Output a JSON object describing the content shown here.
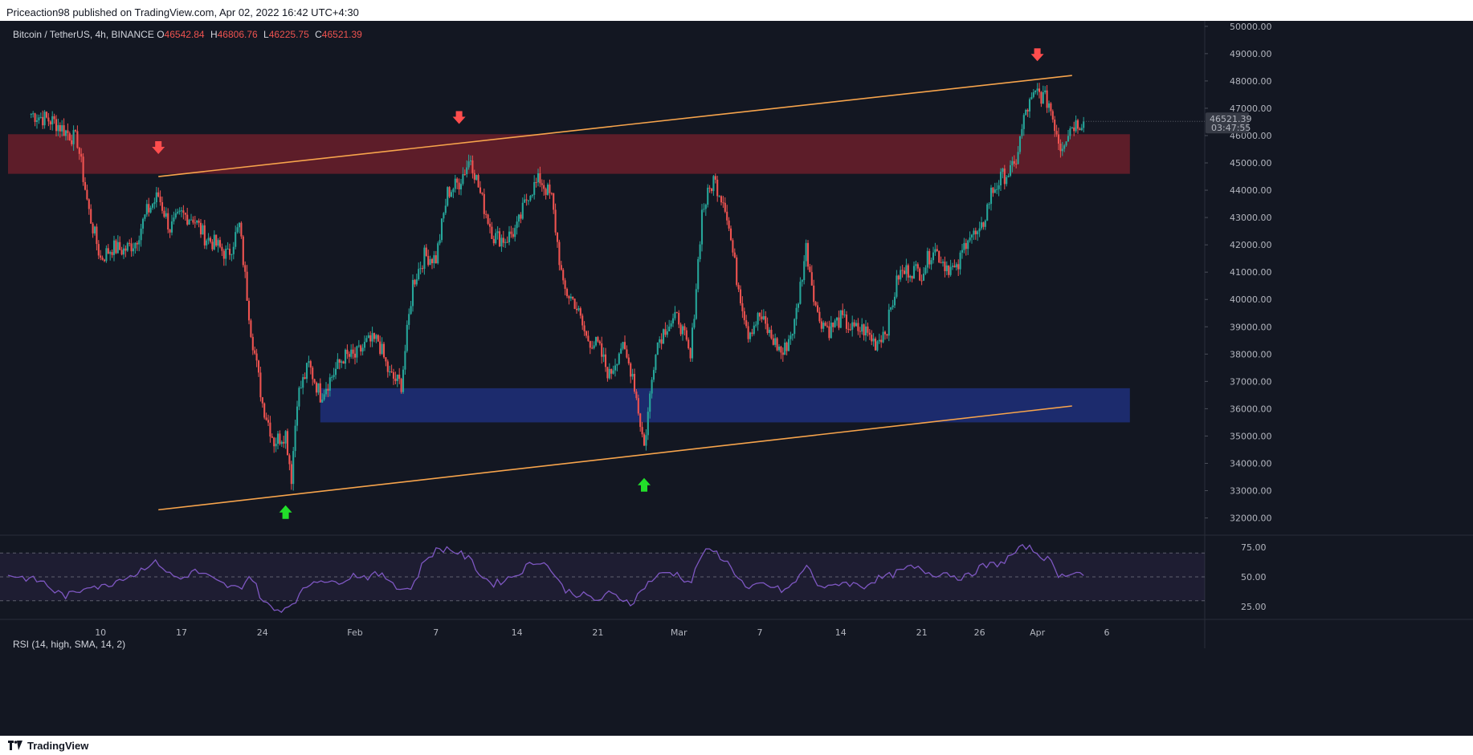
{
  "caption": "Priceaction98 published on TradingView.com, Apr 02, 2022 16:42 UTC+4:30",
  "symbol_line": {
    "symbol": "Bitcoin / TetherUS, 4h, BINANCE",
    "open_label": "O",
    "open": "46542.84",
    "high_label": "H",
    "high": "46806.76",
    "low_label": "L",
    "low": "46225.75",
    "close_label": "C",
    "close": "46521.39"
  },
  "last_price_badge": {
    "price": "46521.39",
    "countdown": "03:47:55"
  },
  "rsi_label": "RSI (14, high, SMA, 14, 2)",
  "footer_brand": "TradingView",
  "colors": {
    "background": "#131722",
    "up": "#26a69a",
    "down": "#ef5350",
    "trendline": "#f7a44c",
    "resistance_zone": "#6b1f2a",
    "support_zone": "#1e2f7a",
    "rsi_line": "#7e57c2",
    "arrow_down": "#ff4d4d",
    "arrow_up": "#22e02a"
  },
  "chart_data": [
    {
      "type": "candlestick",
      "title": "",
      "x_ticks": [
        "10",
        "17",
        "24",
        "Feb",
        "7",
        "14",
        "21",
        "Mar",
        "7",
        "14",
        "21",
        "26",
        "Apr",
        "6"
      ],
      "y_ticks": [
        32000,
        33000,
        34000,
        35000,
        36000,
        37000,
        38000,
        39000,
        40000,
        41000,
        42000,
        43000,
        44000,
        45000,
        46000,
        47000,
        48000,
        49000,
        50000
      ],
      "ylim": [
        31400,
        50200
      ],
      "grid": false,
      "close_path": [
        {
          "day": 2,
          "close": 46800
        },
        {
          "day": 4,
          "close": 46500
        },
        {
          "day": 6,
          "close": 45800
        },
        {
          "day": 7,
          "close": 43200
        },
        {
          "day": 8,
          "close": 41500
        },
        {
          "day": 9,
          "close": 41900
        },
        {
          "day": 10,
          "close": 41800
        },
        {
          "day": 11,
          "close": 42100
        },
        {
          "day": 12,
          "close": 43200
        },
        {
          "day": 13,
          "close": 43800
        },
        {
          "day": 14,
          "close": 42600
        },
        {
          "day": 15,
          "close": 43100
        },
        {
          "day": 16,
          "close": 43000
        },
        {
          "day": 17,
          "close": 42300
        },
        {
          "day": 18,
          "close": 42000
        },
        {
          "day": 19,
          "close": 41600
        },
        {
          "day": 20,
          "close": 42700
        },
        {
          "day": 21,
          "close": 38900
        },
        {
          "day": 22,
          "close": 36200
        },
        {
          "day": 23,
          "close": 34800
        },
        {
          "day": 24,
          "close": 35100
        },
        {
          "day": 24.5,
          "close": 33500
        },
        {
          "day": 25,
          "close": 36400
        },
        {
          "day": 26,
          "close": 37600
        },
        {
          "day": 27,
          "close": 36500
        },
        {
          "day": 28,
          "close": 37200
        },
        {
          "day": 29,
          "close": 37900
        },
        {
          "day": 30,
          "close": 37900
        },
        {
          "day": 31,
          "close": 38400
        },
        {
          "day": 32,
          "close": 38500
        },
        {
          "day": 33,
          "close": 37200
        },
        {
          "day": 34,
          "close": 36900
        },
        {
          "day": 35,
          "close": 40600
        },
        {
          "day": 36,
          "close": 41600
        },
        {
          "day": 37,
          "close": 41500
        },
        {
          "day": 38,
          "close": 43900
        },
        {
          "day": 39,
          "close": 44300
        },
        {
          "day": 40,
          "close": 45200
        },
        {
          "day": 41,
          "close": 43600
        },
        {
          "day": 42,
          "close": 42300
        },
        {
          "day": 43,
          "close": 42200
        },
        {
          "day": 44,
          "close": 42600
        },
        {
          "day": 45,
          "close": 43900
        },
        {
          "day": 46,
          "close": 44400
        },
        {
          "day": 47,
          "close": 43700
        },
        {
          "day": 48,
          "close": 40400
        },
        {
          "day": 49,
          "close": 39900
        },
        {
          "day": 50,
          "close": 38600
        },
        {
          "day": 51,
          "close": 38300
        },
        {
          "day": 52,
          "close": 37200
        },
        {
          "day": 53,
          "close": 38300
        },
        {
          "day": 54,
          "close": 37300
        },
        {
          "day": 55,
          "close": 34600
        },
        {
          "day": 56,
          "close": 38300
        },
        {
          "day": 57,
          "close": 39100
        },
        {
          "day": 58,
          "close": 39300
        },
        {
          "day": 59,
          "close": 37800
        },
        {
          "day": 60,
          "close": 43200
        },
        {
          "day": 61,
          "close": 44400
        },
        {
          "day": 62,
          "close": 43500
        },
        {
          "day": 63,
          "close": 40800
        },
        {
          "day": 64,
          "close": 38800
        },
        {
          "day": 65,
          "close": 39400
        },
        {
          "day": 66,
          "close": 38600
        },
        {
          "day": 67,
          "close": 38000
        },
        {
          "day": 68,
          "close": 39100
        },
        {
          "day": 69,
          "close": 41900
        },
        {
          "day": 70,
          "close": 39400
        },
        {
          "day": 71,
          "close": 38900
        },
        {
          "day": 72,
          "close": 39300
        },
        {
          "day": 73,
          "close": 38900
        },
        {
          "day": 74,
          "close": 38900
        },
        {
          "day": 75,
          "close": 38400
        },
        {
          "day": 76,
          "close": 39000
        },
        {
          "day": 77,
          "close": 40900
        },
        {
          "day": 78,
          "close": 41100
        },
        {
          "day": 79,
          "close": 41000
        },
        {
          "day": 80,
          "close": 41900
        },
        {
          "day": 81,
          "close": 41300
        },
        {
          "day": 82,
          "close": 41000
        },
        {
          "day": 83,
          "close": 42400
        },
        {
          "day": 84,
          "close": 42300
        },
        {
          "day": 85,
          "close": 43900
        },
        {
          "day": 86,
          "close": 44500
        },
        {
          "day": 87,
          "close": 44800
        },
        {
          "day": 88,
          "close": 46900
        },
        {
          "day": 89,
          "close": 47600
        },
        {
          "day": 90,
          "close": 47200
        },
        {
          "day": 91,
          "close": 45600
        },
        {
          "day": 92,
          "close": 46400
        },
        {
          "day": 93,
          "close": 46521
        }
      ],
      "trendlines": [
        {
          "name": "channel-top",
          "from": {
            "day": 13,
            "price": 44500
          },
          "to": {
            "day": 92,
            "price": 48200
          }
        },
        {
          "name": "channel-bottom",
          "from": {
            "day": 13,
            "price": 32300
          },
          "to": {
            "day": 92,
            "price": 36100
          }
        }
      ],
      "zones": [
        {
          "name": "resistance-zone",
          "price_from": 44600,
          "price_to": 46050,
          "day_from": 0,
          "day_to": 97
        },
        {
          "name": "support-zone",
          "price_from": 35500,
          "price_to": 36750,
          "day_from": 27,
          "day_to": 97
        }
      ],
      "markers": [
        {
          "name": "down-arrow",
          "day": 13,
          "price": 45500
        },
        {
          "name": "down-arrow",
          "day": 39,
          "price": 46600
        },
        {
          "name": "down-arrow",
          "day": 89,
          "price": 48900
        },
        {
          "name": "up-arrow",
          "day": 24,
          "price": 32200
        },
        {
          "name": "up-arrow",
          "day": 55,
          "price": 33200
        }
      ]
    },
    {
      "type": "line",
      "title": "",
      "y_ticks": [
        25,
        50,
        75
      ],
      "ylim": [
        15,
        85
      ],
      "guide_lines": [
        30,
        50,
        70
      ],
      "series": [
        {
          "values": [
            52,
            50,
            48,
            46,
            38,
            34,
            37,
            44,
            41,
            45,
            50,
            52,
            60,
            62,
            52,
            48,
            55,
            52,
            46,
            42,
            40,
            52,
            30,
            22,
            24,
            32,
            44,
            49,
            44,
            48,
            52,
            50,
            52,
            48,
            39,
            42,
            64,
            72,
            74,
            70,
            64,
            50,
            44,
            48,
            52,
            60,
            64,
            56,
            40,
            36,
            34,
            30,
            36,
            32,
            28,
            42,
            50,
            54,
            52,
            44,
            70,
            72,
            64,
            52,
            38,
            44,
            42,
            38,
            44,
            60,
            44,
            40,
            46,
            44,
            42,
            48,
            50,
            54,
            58,
            56,
            52,
            54,
            50,
            50,
            58,
            60,
            62,
            70,
            76,
            70,
            64,
            50,
            55,
            52
          ]
        }
      ]
    }
  ]
}
